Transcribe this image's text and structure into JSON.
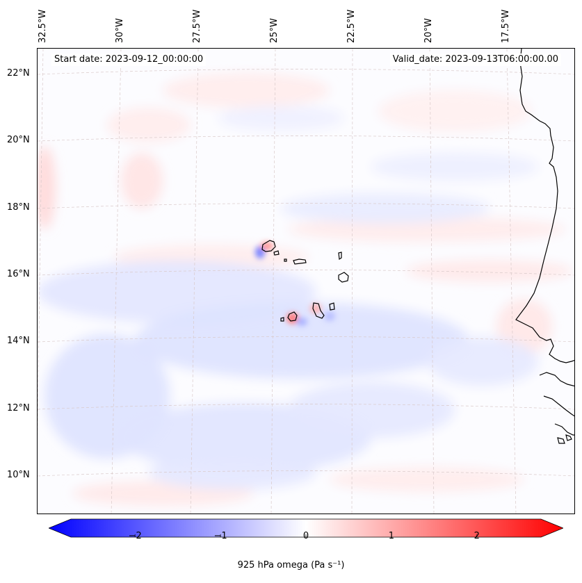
{
  "map": {
    "start_date_label": "Start date: 2023-09-12_00:00:00",
    "valid_date_label": "Valid_date: 2023-09-13T06:00:00.00",
    "lon_ticks": [
      "32.5°W",
      "30°W",
      "27.5°W",
      "25°W",
      "22.5°W",
      "20°W",
      "17.5°W"
    ],
    "lat_ticks": [
      "22°N",
      "20°N",
      "18°N",
      "16°N",
      "14°N",
      "12°N",
      "10°N"
    ],
    "extent": {
      "lon_min": -32.6,
      "lon_max": -15.4,
      "lat_min": 8.9,
      "lat_max": 22.8
    },
    "ocean_color": "#fcfcff",
    "coastline_color": "#000000"
  },
  "colorbar": {
    "ticks": [
      "−2",
      "−1",
      "0",
      "1",
      "2"
    ],
    "tick_values": [
      -2,
      -1,
      0,
      1,
      2
    ],
    "range": [
      -2.75,
      2.75
    ],
    "min_color": "#0000ff",
    "mid_color": "#ffffff",
    "max_color": "#ff0000",
    "label": "925 hPa omega (Pa s⁻¹)"
  }
}
